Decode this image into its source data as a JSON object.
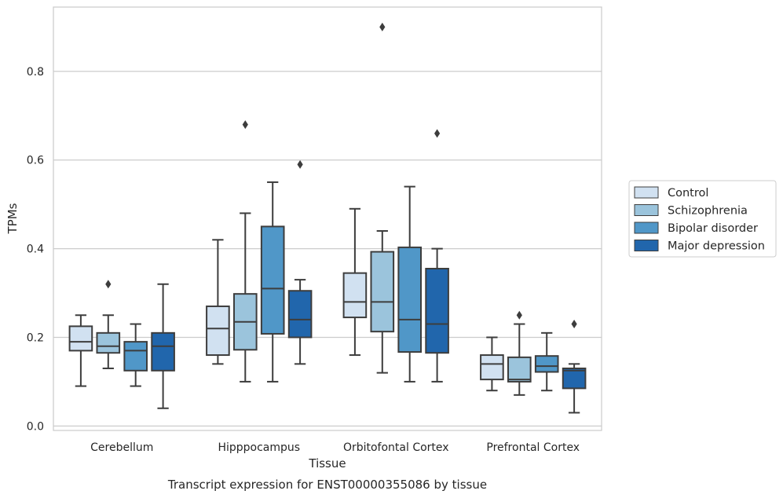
{
  "chart_data": {
    "type": "box",
    "title": "",
    "xlabel": "Tissue",
    "ylabel": "TPMs",
    "caption": "Transcript expression for ENST00000355086 by tissue",
    "ylim": [
      -0.01,
      0.945
    ],
    "yticks": [
      0.0,
      0.2,
      0.4,
      0.6,
      0.8
    ],
    "ytick_labels": [
      "0.0",
      "0.2",
      "0.4",
      "0.6",
      "0.8"
    ],
    "grid": "horizontal",
    "legend_position": "right",
    "categories": [
      "Cerebellum",
      "Hipppocampus",
      "Orbitofontal Cortex",
      "Prefrontal Cortex"
    ],
    "series": [
      {
        "name": "Control",
        "color": "#d1e1f1",
        "boxes": [
          {
            "whislo": 0.09,
            "q1": 0.17,
            "med": 0.19,
            "q3": 0.225,
            "whishi": 0.25,
            "fliers": []
          },
          {
            "whislo": 0.14,
            "q1": 0.16,
            "med": 0.22,
            "q3": 0.27,
            "whishi": 0.42,
            "fliers": []
          },
          {
            "whislo": 0.16,
            "q1": 0.245,
            "med": 0.28,
            "q3": 0.345,
            "whishi": 0.49,
            "fliers": []
          },
          {
            "whislo": 0.08,
            "q1": 0.105,
            "med": 0.14,
            "q3": 0.16,
            "whishi": 0.2,
            "fliers": []
          }
        ]
      },
      {
        "name": "Schizophrenia",
        "color": "#9bc4dc",
        "boxes": [
          {
            "whislo": 0.13,
            "q1": 0.165,
            "med": 0.18,
            "q3": 0.21,
            "whishi": 0.25,
            "fliers": [
              0.32
            ]
          },
          {
            "whislo": 0.1,
            "q1": 0.172,
            "med": 0.235,
            "q3": 0.298,
            "whishi": 0.48,
            "fliers": [
              0.68
            ]
          },
          {
            "whislo": 0.12,
            "q1": 0.213,
            "med": 0.28,
            "q3": 0.393,
            "whishi": 0.44,
            "fliers": [
              0.9
            ]
          },
          {
            "whislo": 0.07,
            "q1": 0.1,
            "med": 0.105,
            "q3": 0.155,
            "whishi": 0.23,
            "fliers": [
              0.25
            ]
          }
        ]
      },
      {
        "name": "Bipolar disorder",
        "color": "#5097c8",
        "boxes": [
          {
            "whislo": 0.09,
            "q1": 0.125,
            "med": 0.17,
            "q3": 0.19,
            "whishi": 0.23,
            "fliers": []
          },
          {
            "whislo": 0.1,
            "q1": 0.208,
            "med": 0.31,
            "q3": 0.45,
            "whishi": 0.55,
            "fliers": []
          },
          {
            "whislo": 0.1,
            "q1": 0.167,
            "med": 0.24,
            "q3": 0.403,
            "whishi": 0.54,
            "fliers": []
          },
          {
            "whislo": 0.08,
            "q1": 0.122,
            "med": 0.135,
            "q3": 0.158,
            "whishi": 0.21,
            "fliers": []
          }
        ]
      },
      {
        "name": "Major depression",
        "color": "#2166ac",
        "boxes": [
          {
            "whislo": 0.04,
            "q1": 0.125,
            "med": 0.18,
            "q3": 0.21,
            "whishi": 0.32,
            "fliers": []
          },
          {
            "whislo": 0.14,
            "q1": 0.2,
            "med": 0.24,
            "q3": 0.305,
            "whishi": 0.33,
            "fliers": [
              0.59
            ]
          },
          {
            "whislo": 0.1,
            "q1": 0.165,
            "med": 0.23,
            "q3": 0.355,
            "whishi": 0.4,
            "fliers": [
              0.66
            ]
          },
          {
            "whislo": 0.03,
            "q1": 0.085,
            "med": 0.125,
            "q3": 0.13,
            "whishi": 0.14,
            "fliers": [
              0.23
            ]
          }
        ]
      }
    ]
  }
}
